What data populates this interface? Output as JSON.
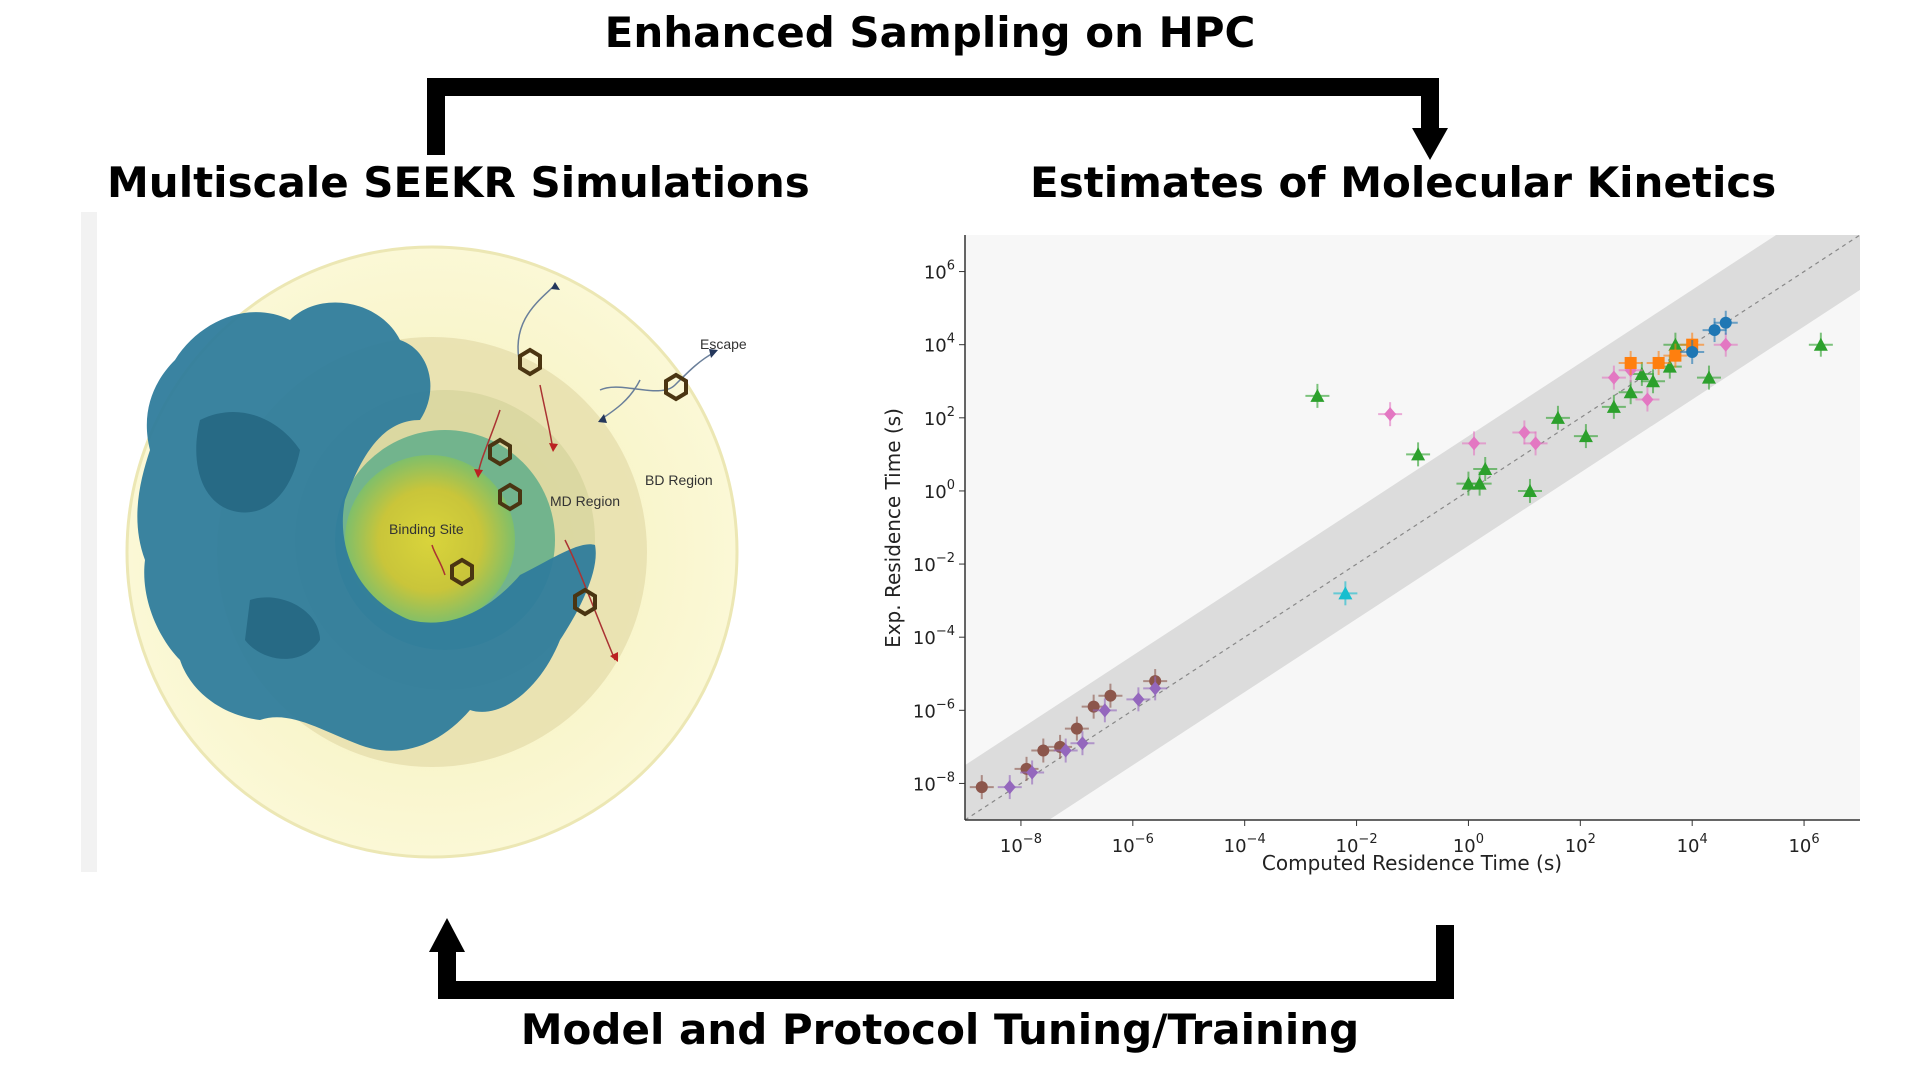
{
  "titles": {
    "top": "Enhanced Sampling on HPC",
    "left": "Multiscale SEEKR Simulations",
    "right": "Estimates of Molecular Kinetics",
    "bottom": "Model and Protocol Tuning/Training"
  },
  "illustration": {
    "labels": {
      "escape": "Escape",
      "bd_region": "BD Region",
      "md_region": "MD Region",
      "binding_site": "Binding Site"
    }
  },
  "chart_data": {
    "type": "scatter",
    "x_scale": "log",
    "y_scale": "log",
    "xlabel": "Computed Residence Time (s)",
    "ylabel": "Exp. Residence Time (s)",
    "xlim": [
      1e-09,
      10000000.0
    ],
    "ylim": [
      1e-09,
      10000000.0
    ],
    "x_ticks": [
      {
        "exp": -8,
        "base": "10",
        "sup": "−8"
      },
      {
        "exp": -6,
        "base": "10",
        "sup": "−6"
      },
      {
        "exp": -4,
        "base": "10",
        "sup": "−4"
      },
      {
        "exp": -2,
        "base": "10",
        "sup": "−2"
      },
      {
        "exp": 0,
        "base": "10",
        "sup": "0"
      },
      {
        "exp": 2,
        "base": "10",
        "sup": "2"
      },
      {
        "exp": 4,
        "base": "10",
        "sup": "4"
      },
      {
        "exp": 6,
        "base": "10",
        "sup": "6"
      }
    ],
    "y_ticks": [
      {
        "exp": -8,
        "base": "10",
        "sup": "−8"
      },
      {
        "exp": -6,
        "base": "10",
        "sup": "−6"
      },
      {
        "exp": -4,
        "base": "10",
        "sup": "−4"
      },
      {
        "exp": -2,
        "base": "10",
        "sup": "−2"
      },
      {
        "exp": 0,
        "base": "10",
        "sup": "0"
      },
      {
        "exp": 2,
        "base": "10",
        "sup": "2"
      },
      {
        "exp": 4,
        "base": "10",
        "sup": "4"
      },
      {
        "exp": 6,
        "base": "10",
        "sup": "6"
      }
    ],
    "band_log_width": 1.5,
    "series": [
      {
        "color": "#8c564b",
        "marker": "circle",
        "points": [
          [
            -8.7,
            -8.1
          ],
          [
            -7.9,
            -7.6
          ],
          [
            -7.6,
            -7.1
          ],
          [
            -7.3,
            -7.0
          ],
          [
            -7.0,
            -6.5
          ],
          [
            -6.7,
            -5.9
          ],
          [
            -6.4,
            -5.6
          ],
          [
            -5.6,
            -5.2
          ]
        ]
      },
      {
        "color": "#9467bd",
        "marker": "diamond",
        "points": [
          [
            -8.2,
            -8.1
          ],
          [
            -7.8,
            -7.7
          ],
          [
            -7.2,
            -7.1
          ],
          [
            -6.9,
            -6.9
          ],
          [
            -6.5,
            -6.0
          ],
          [
            -5.9,
            -5.7
          ],
          [
            -5.6,
            -5.4
          ]
        ]
      },
      {
        "color": "#17becf",
        "marker": "triangle",
        "points": [
          [
            -2.2,
            -2.8
          ]
        ]
      },
      {
        "color": "#2ca02c",
        "marker": "triangle",
        "points": [
          [
            -2.7,
            2.6
          ],
          [
            -0.9,
            1.0
          ],
          [
            0.0,
            0.2
          ],
          [
            0.2,
            0.2
          ],
          [
            0.3,
            0.6
          ],
          [
            1.1,
            0.0
          ],
          [
            1.6,
            2.0
          ],
          [
            2.1,
            1.5
          ],
          [
            2.6,
            2.3
          ],
          [
            2.9,
            2.7
          ],
          [
            3.1,
            3.2
          ],
          [
            3.3,
            3.0
          ],
          [
            3.6,
            3.4
          ],
          [
            3.7,
            4.0
          ],
          [
            4.3,
            3.1
          ],
          [
            6.3,
            4.0
          ]
        ]
      },
      {
        "color": "#e377c2",
        "marker": "diamond",
        "points": [
          [
            -1.4,
            2.1
          ],
          [
            0.1,
            1.3
          ],
          [
            1.0,
            1.6
          ],
          [
            1.2,
            1.3
          ],
          [
            2.6,
            3.1
          ],
          [
            2.9,
            3.3
          ],
          [
            3.2,
            2.5
          ],
          [
            4.6,
            4.0
          ]
        ]
      },
      {
        "color": "#ff7f0e",
        "marker": "square",
        "points": [
          [
            2.9,
            3.5
          ],
          [
            3.4,
            3.5
          ],
          [
            3.7,
            3.7
          ],
          [
            4.0,
            4.0
          ]
        ]
      },
      {
        "color": "#1f77b4",
        "marker": "circle",
        "points": [
          [
            4.0,
            3.8
          ],
          [
            4.4,
            4.4
          ],
          [
            4.6,
            4.6
          ]
        ]
      }
    ]
  }
}
